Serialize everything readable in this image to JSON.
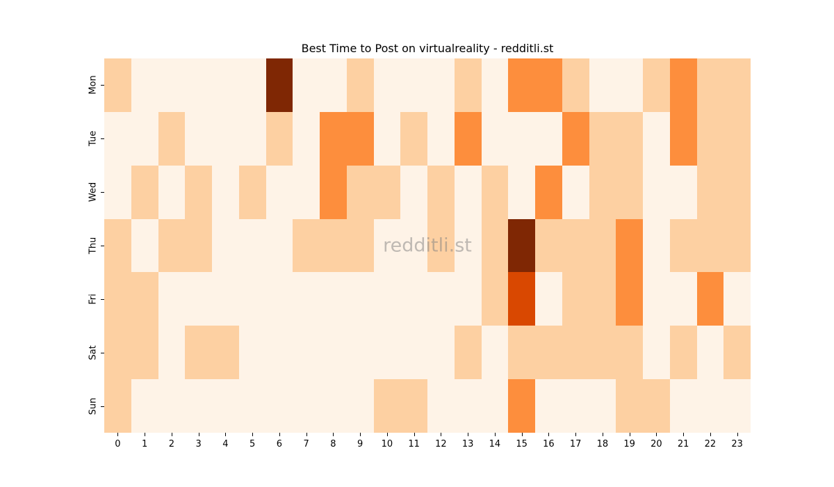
{
  "chart_data": {
    "type": "heatmap",
    "title": "Best Time to Post on virtualreality - redditli.st",
    "xlabel": "",
    "ylabel": "",
    "x": [
      "0",
      "1",
      "2",
      "3",
      "4",
      "5",
      "6",
      "7",
      "8",
      "9",
      "10",
      "11",
      "12",
      "13",
      "14",
      "15",
      "16",
      "17",
      "18",
      "19",
      "20",
      "21",
      "22",
      "23"
    ],
    "y": [
      "Mon",
      "Tue",
      "Wed",
      "Thu",
      "Fri",
      "Sat",
      "Sun"
    ],
    "colormap": "Oranges",
    "level_colors": [
      "#fef3e7",
      "#fdd0a2",
      "#fd8e3d",
      "#d94801",
      "#7f2704"
    ],
    "values": [
      [
        1,
        0,
        0,
        0,
        0,
        0,
        4,
        0,
        0,
        1,
        0,
        0,
        0,
        1,
        0,
        2,
        2,
        1,
        0,
        0,
        1,
        2,
        1,
        1
      ],
      [
        0,
        0,
        1,
        0,
        0,
        0,
        1,
        0,
        2,
        2,
        0,
        1,
        0,
        2,
        0,
        0,
        0,
        2,
        1,
        1,
        0,
        2,
        1,
        1
      ],
      [
        0,
        1,
        0,
        1,
        0,
        1,
        0,
        0,
        2,
        1,
        1,
        0,
        1,
        0,
        1,
        0,
        2,
        0,
        1,
        1,
        0,
        0,
        1,
        1
      ],
      [
        1,
        0,
        1,
        1,
        0,
        0,
        0,
        1,
        1,
        1,
        0,
        0,
        1,
        0,
        1,
        4,
        1,
        1,
        1,
        2,
        0,
        1,
        1,
        1
      ],
      [
        1,
        1,
        0,
        0,
        0,
        0,
        0,
        0,
        0,
        0,
        0,
        0,
        0,
        0,
        1,
        3,
        0,
        1,
        1,
        2,
        0,
        0,
        2,
        0
      ],
      [
        1,
        1,
        0,
        1,
        1,
        0,
        0,
        0,
        0,
        0,
        0,
        0,
        0,
        1,
        0,
        1,
        1,
        1,
        1,
        1,
        0,
        1,
        0,
        1
      ],
      [
        1,
        0,
        0,
        0,
        0,
        0,
        0,
        0,
        0,
        0,
        1,
        1,
        0,
        0,
        0,
        2,
        0,
        0,
        0,
        1,
        1,
        0,
        0,
        0
      ]
    ],
    "grid": false,
    "legend": "none",
    "watermark": "redditli.st"
  }
}
